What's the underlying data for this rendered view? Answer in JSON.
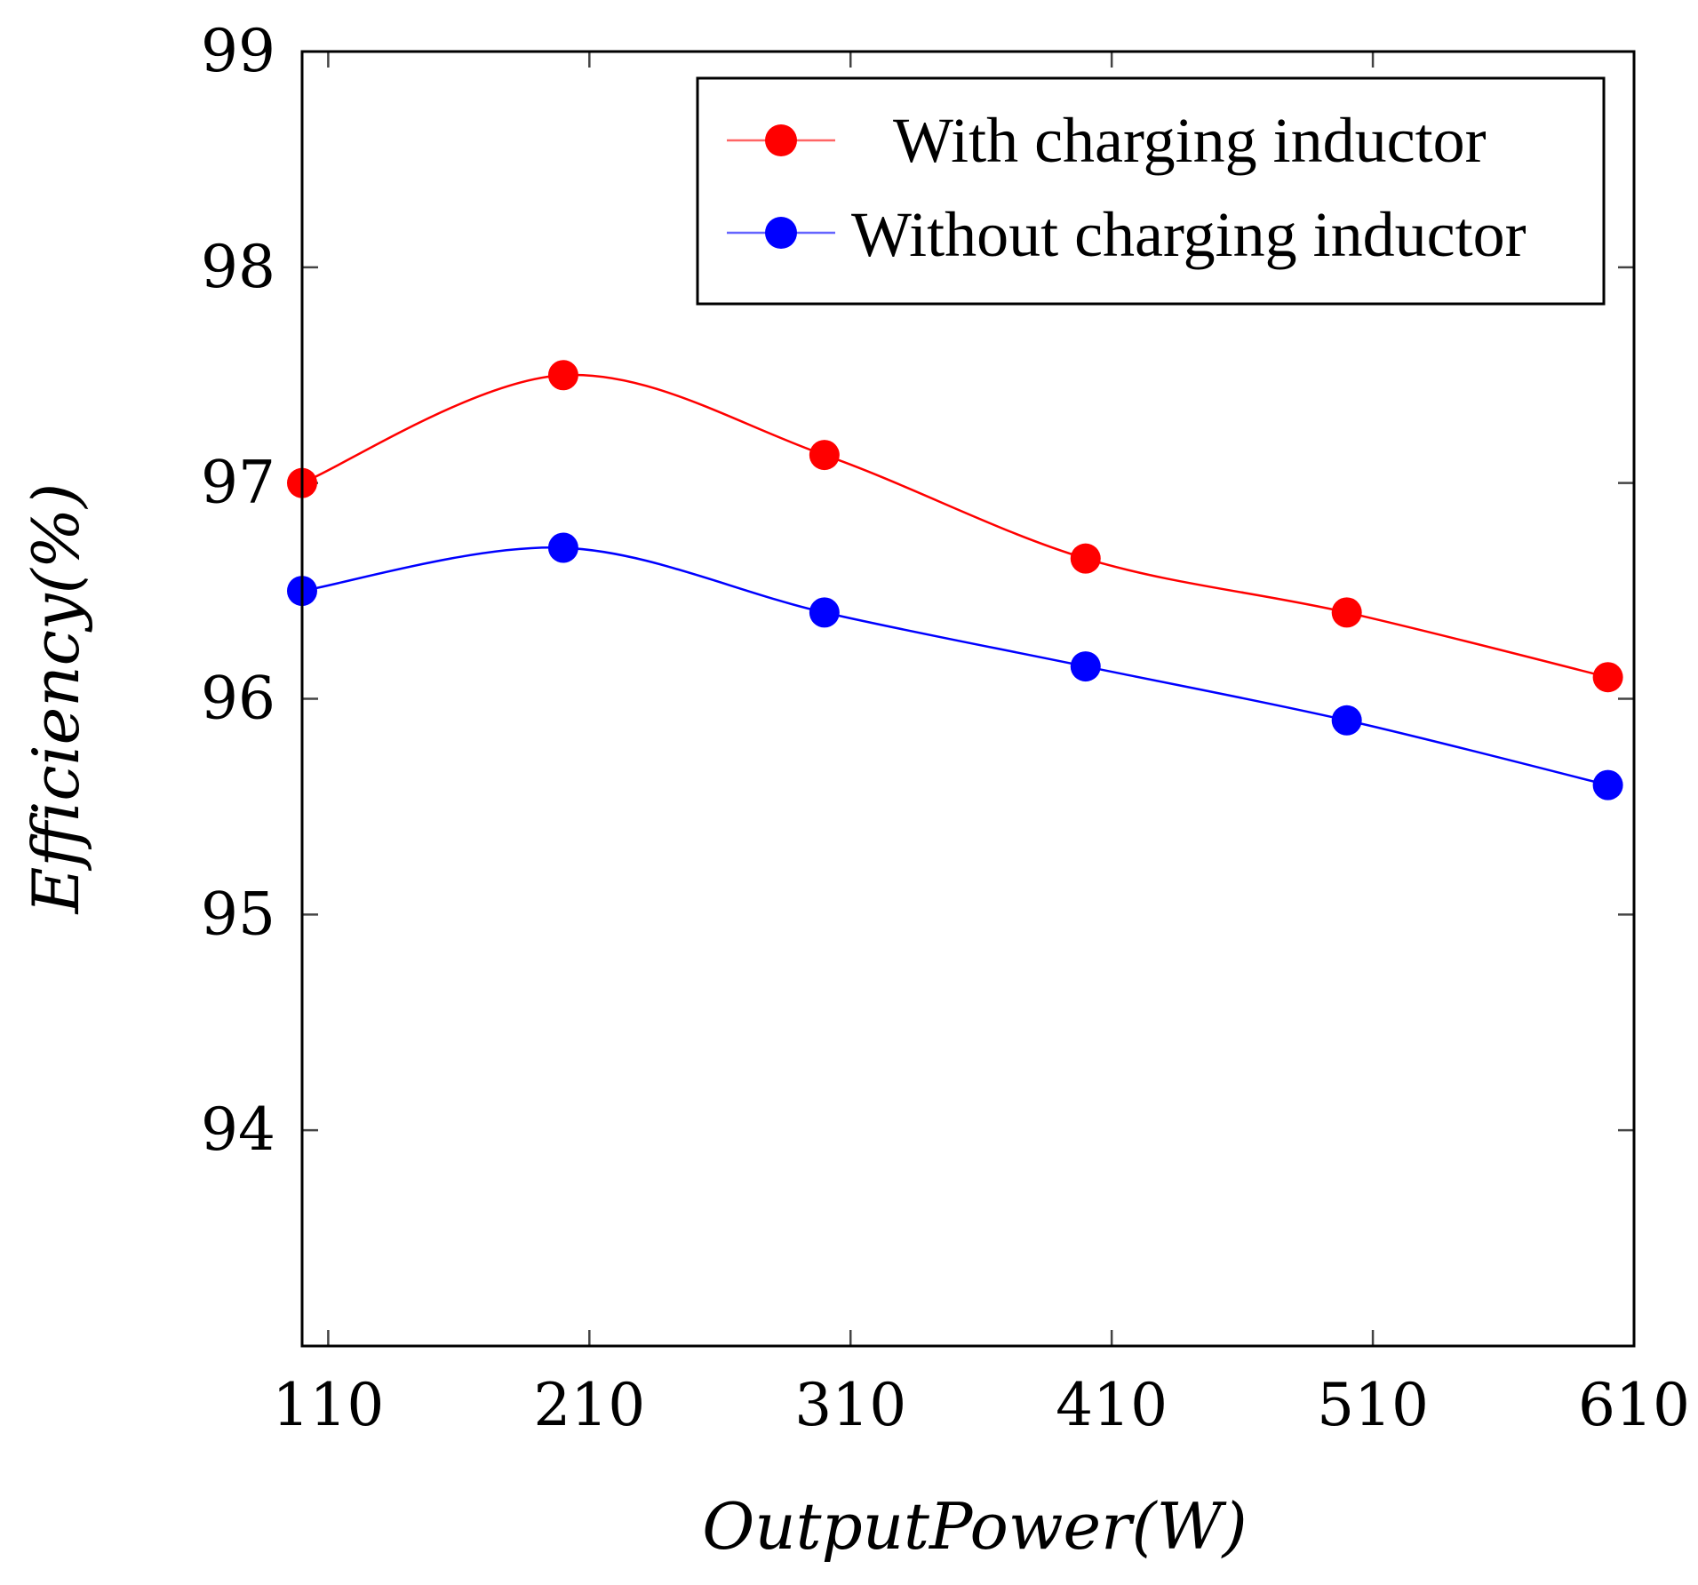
{
  "chart_data": {
    "type": "line",
    "xlabel": "OutputPower(W)",
    "ylabel": "Efficiency(%)",
    "x": [
      100,
      200,
      300,
      400,
      500,
      600
    ],
    "xticks": [
      110,
      210,
      310,
      410,
      510,
      610
    ],
    "xtick_labels": [
      "110",
      "210",
      "310",
      "410",
      "510",
      "610"
    ],
    "xlim": [
      100,
      610
    ],
    "yticks": [
      94,
      95,
      96,
      97,
      98,
      99
    ],
    "ytick_labels": [
      "94",
      "95",
      "96",
      "97",
      "98",
      "99"
    ],
    "ylim": [
      93,
      99
    ],
    "smooth": true,
    "grid": false,
    "legend_position": "top-right",
    "series": [
      {
        "name": "With charging inductor",
        "color": "#ff0000",
        "values": [
          97.0,
          97.5,
          97.13,
          96.65,
          96.4,
          96.1
        ]
      },
      {
        "name": "Without charging inductor",
        "color": "#0000ff",
        "values": [
          96.5,
          96.7,
          96.4,
          96.15,
          95.9,
          95.6
        ]
      }
    ]
  }
}
